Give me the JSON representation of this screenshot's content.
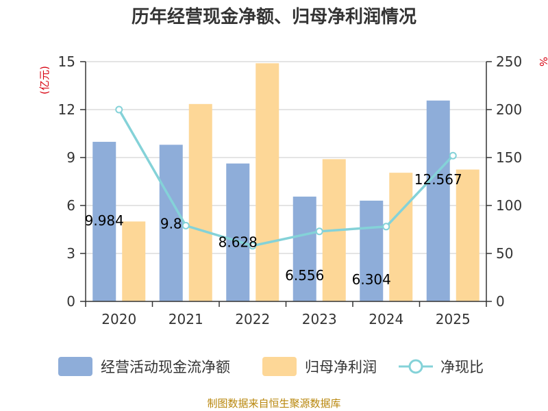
{
  "colors": {
    "bar1": "#8eadd9",
    "bar2": "#fdd797",
    "line": "#84d2d8",
    "axis": "#333333",
    "grid": "#c8c8c8",
    "unit": "#d7000f",
    "source": "#b8860b"
  },
  "chart_data": {
    "type": "bar",
    "title": "历年经营现金净额、归母净利润情况",
    "categories": [
      "2020",
      "2021",
      "2022",
      "2023",
      "2024",
      "2025"
    ],
    "left_axis": {
      "unit": "(亿元)",
      "ylim": [
        0,
        15
      ],
      "ticks": [
        "0",
        "3",
        "6",
        "9",
        "12",
        "15"
      ]
    },
    "right_axis": {
      "unit": "%",
      "ylim": [
        0,
        250
      ],
      "ticks": [
        "0",
        "50",
        "100",
        "150",
        "200",
        "250"
      ]
    },
    "series": [
      {
        "name": "经营活动现金流净额",
        "type": "bar",
        "axis": "left",
        "values": [
          9.984,
          9.8,
          8.628,
          6.556,
          6.304,
          12.567
        ],
        "labels": [
          "9.984",
          "9.8",
          "8.628",
          "6.556",
          "6.304",
          "12.567"
        ]
      },
      {
        "name": "归母净利润",
        "type": "bar",
        "axis": "left",
        "values": [
          5.0,
          12.35,
          14.9,
          8.9,
          8.05,
          8.25
        ]
      },
      {
        "name": "净现比",
        "type": "line",
        "axis": "right",
        "values": [
          200,
          79,
          58,
          73,
          78,
          152
        ]
      }
    ],
    "legend": [
      "经营活动现金流净额",
      "归母净利润",
      "净现比"
    ],
    "legend_position": "bottom",
    "grid": true
  },
  "source": "制图数据来自恒生聚源数据库"
}
